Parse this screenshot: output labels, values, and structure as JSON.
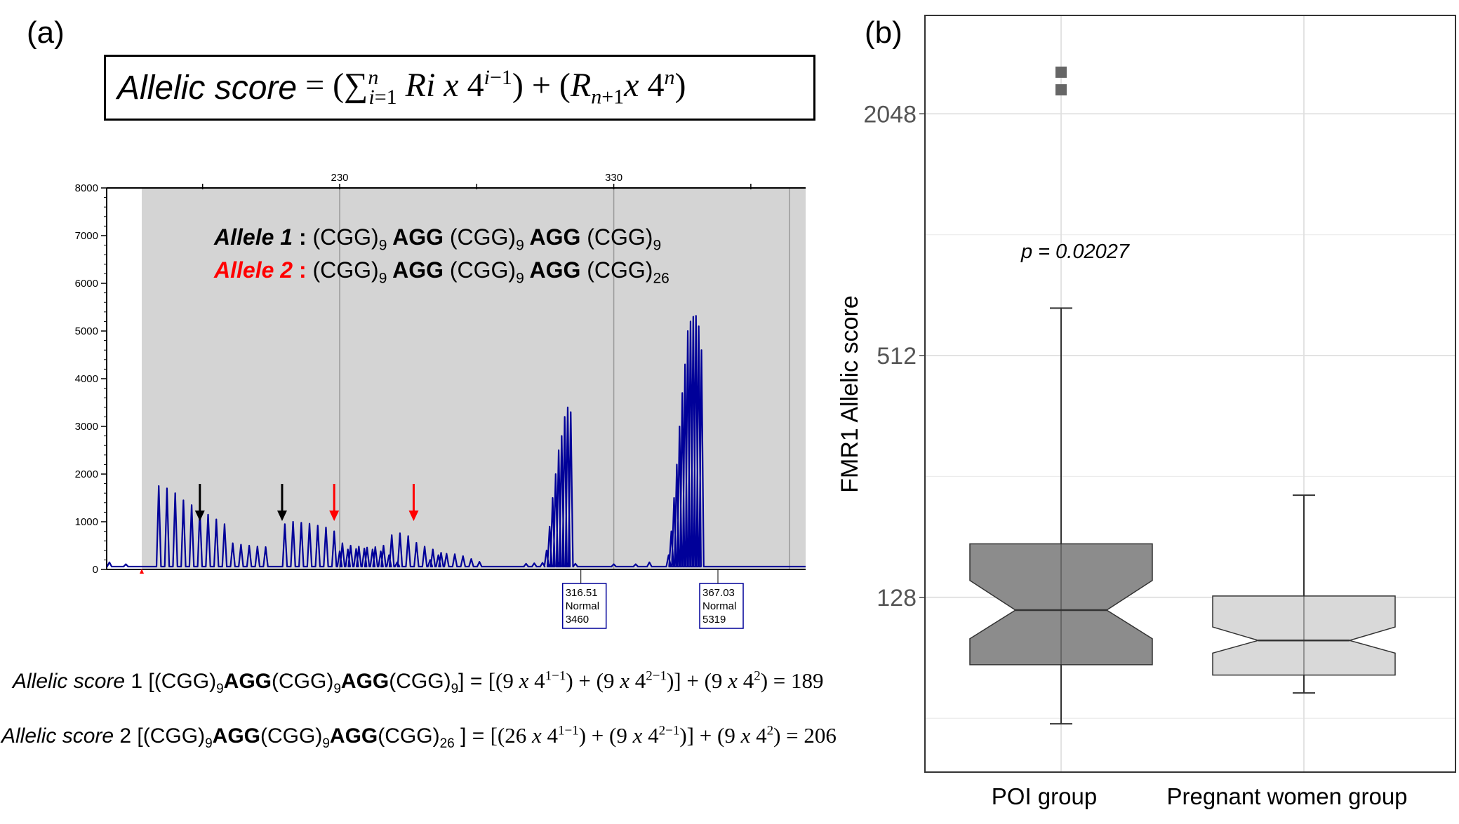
{
  "panel_a_label": "(a)",
  "panel_b_label": "(b)",
  "formula": {
    "lhs": "Allelic score",
    "text": "Allelic score = (∑_{i=1}^{n} Ri x 4^{i−1}) + (R_{n+1} x 4^{n})"
  },
  "alleles": [
    {
      "label": "Allele 1",
      "sep": ":",
      "color": "#000000",
      "parts": [
        "(CGG)",
        "9",
        " AGG ",
        "(CGG)",
        "9",
        " AGG ",
        "(CGG)",
        "9"
      ]
    },
    {
      "label": "Allele 2",
      "sep": ":",
      "color": "#ff0000",
      "parts": [
        "(CGG)",
        "9",
        " AGG ",
        "(CGG)",
        "9",
        " AGG ",
        "(CGG)",
        "26"
      ]
    }
  ],
  "calculations": [
    {
      "lead": "Allelic score",
      "index": "1",
      "repeats": [
        "9",
        "9",
        "9"
      ],
      "terms": [
        "9",
        "9",
        "9"
      ],
      "result": "189"
    },
    {
      "lead": "Allelic score",
      "index": "2",
      "repeats": [
        "9",
        "9",
        "26"
      ],
      "terms": [
        "26",
        "9",
        "9"
      ],
      "result": "206"
    }
  ],
  "chart_data": [
    {
      "type": "line",
      "title": "",
      "xlabel": "",
      "ylabel": "",
      "ylim": [
        0,
        8000
      ],
      "yticks": [
        "0",
        "1000",
        "2000",
        "3000",
        "4000",
        "5000",
        "6000",
        "7000",
        "8000"
      ],
      "xticks": [
        {
          "value": 230,
          "label": "230"
        },
        {
          "value": 330,
          "label": "330"
        }
      ],
      "xlim": [
        145,
        400
      ],
      "color": "#000099",
      "peak_groups": [
        {
          "start": 164.0,
          "spacing": 3.0,
          "heights": [
            1750,
            1700,
            1600,
            1450,
            1350,
            1250,
            1150,
            1050,
            950,
            550,
            520,
            500,
            480,
            470
          ]
        },
        {
          "start": 210.0,
          "spacing": 3.0,
          "heights": [
            950,
            1000,
            980,
            960,
            920,
            880,
            800,
            550,
            500,
            480,
            460,
            470,
            500,
            720,
            760,
            700,
            560,
            480,
            420,
            350
          ]
        },
        {
          "start": 230.0,
          "spacing": 3.0,
          "heights": [
            380,
            420,
            430,
            440,
            420,
            380,
            300,
            150
          ]
        },
        {
          "start": 263.0,
          "spacing": 3.0,
          "heights": [
            200,
            300,
            330,
            320,
            280,
            220,
            160
          ]
        },
        {
          "start": 298.0,
          "spacing": 3.0,
          "heights": [
            120,
            130,
            140,
            120,
            140,
            130,
            120
          ]
        },
        {
          "start": 305.5,
          "spacing": 1.1,
          "heights": [
            400,
            900,
            1500,
            2000,
            2500,
            2800,
            3200,
            3400,
            3300
          ]
        },
        {
          "start": 350.0,
          "spacing": 1.0,
          "heights": [
            300,
            800,
            1500,
            2200,
            3000,
            3700,
            4300,
            5000,
            5200,
            5300,
            5319,
            5100,
            4600
          ]
        }
      ],
      "small_peaks": [
        {
          "x": 146,
          "y": 150
        },
        {
          "x": 152,
          "y": 110
        },
        {
          "x": 330,
          "y": 110
        },
        {
          "x": 338,
          "y": 110
        },
        {
          "x": 343,
          "y": 150
        }
      ],
      "arrows": [
        {
          "x": 179,
          "color": "black"
        },
        {
          "x": 209,
          "color": "black"
        },
        {
          "x": 228,
          "color": "red"
        },
        {
          "x": 257,
          "color": "red"
        }
      ],
      "peak_boxes": [
        {
          "size": "316.51",
          "status": "Normal",
          "height": "3460",
          "x": 318
        },
        {
          "size": "367.03",
          "status": "Normal",
          "height": "5319",
          "x": 368
        }
      ]
    },
    {
      "type": "boxplot",
      "xlabel": "",
      "ylabel": "FMR1 Allelic score",
      "y_scale": "log2",
      "yticks": [
        128,
        512,
        2048
      ],
      "ytick_labels": [
        "128",
        "512",
        "2048"
      ],
      "ylim": [
        47,
        3600
      ],
      "grid": true,
      "categories": [
        "POI group",
        "Pregnant women group"
      ],
      "series": [
        {
          "whisker_low": 62,
          "q1": 87,
          "median": 119,
          "q3": 174,
          "whisker_high": 672,
          "notch_low": 101,
          "notch_high": 141,
          "outliers": [
            2600,
            2350
          ],
          "fill": "#8c8c8c"
        },
        {
          "whisker_low": 74,
          "q1": 82,
          "median": 100,
          "q3": 129,
          "whisker_high": 230,
          "notch_low": 93,
          "notch_high": 108,
          "outliers": [],
          "fill": "#d9d9d9"
        }
      ],
      "annotation": "p = 0.02027"
    }
  ]
}
